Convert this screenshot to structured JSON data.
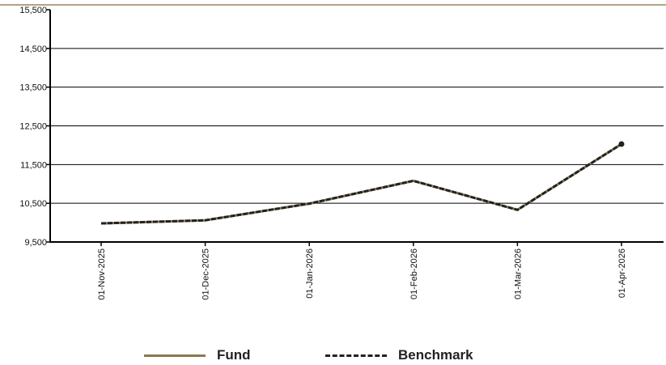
{
  "chart_data": {
    "type": "line",
    "title": "",
    "xlabel": "",
    "ylabel": "",
    "categories": [
      "01-Nov-2025",
      "01-Dec-2025",
      "01-Jan-2026",
      "01-Feb-2026",
      "01-Mar-2026",
      "01-Apr-2026"
    ],
    "ylim": [
      9500,
      15500
    ],
    "yticks": [
      9500,
      10500,
      11500,
      12500,
      13500,
      14500,
      15500
    ],
    "ytick_labels": [
      "9,500",
      "10,500",
      "11,500",
      "12,500",
      "13,500",
      "14,500",
      "15,500"
    ],
    "grid": true,
    "legend_position": "bottom",
    "series": [
      {
        "name": "Fund",
        "values": [
          9980,
          10060,
          10490,
          11080,
          10330,
          12030
        ],
        "color": "#8a7850",
        "style": "solid"
      },
      {
        "name": "Benchmark",
        "values": [
          9980,
          10060,
          10490,
          11080,
          10330,
          12030
        ],
        "color": "#222222",
        "style": "dashed"
      }
    ]
  },
  "legend": {
    "items": [
      {
        "label": "Fund",
        "color": "#8a7850",
        "style": "solid"
      },
      {
        "label": "Benchmark",
        "color": "#222222",
        "style": "dashed"
      }
    ]
  },
  "colors": {
    "header_rule": "#b2a380",
    "axis": "#000000",
    "grid": "#000000"
  }
}
